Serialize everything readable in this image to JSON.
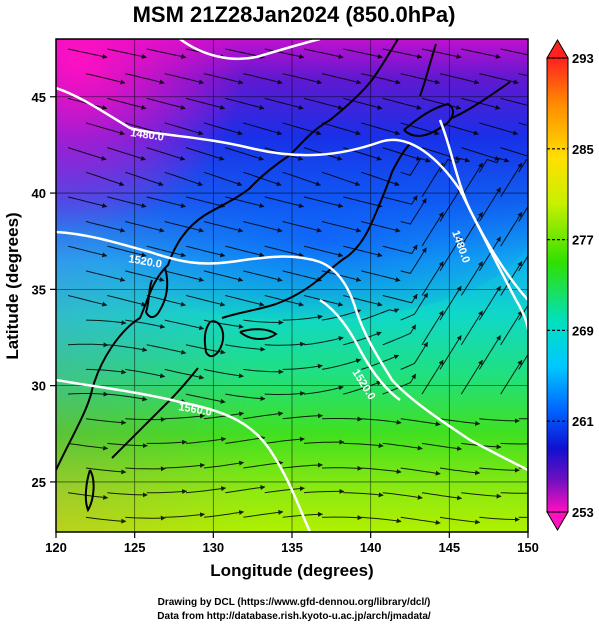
{
  "title": "MSM 21Z28Jan2024 (850.0hPa)",
  "x_axis": {
    "label": "Longitude (degrees)",
    "range": [
      120,
      150
    ],
    "ticks": [
      "120",
      "125",
      "130",
      "135",
      "140",
      "145",
      "150"
    ]
  },
  "y_axis": {
    "label": "Latitude  (degrees)",
    "range": [
      22.4,
      48
    ],
    "ticks": [
      "25",
      "30",
      "35",
      "40",
      "45"
    ]
  },
  "colorbar": {
    "min": 253,
    "max": 293,
    "ticks": [
      "293",
      "285",
      "277",
      "269",
      "261",
      "253"
    ],
    "colors": [
      "#ff2020",
      "#ff8a00",
      "#ffe000",
      "#c8f000",
      "#30e000",
      "#00e0c0",
      "#00c8ff",
      "#0060ff",
      "#1010d0",
      "#7010c0",
      "#ff10c0"
    ]
  },
  "contours": [
    {
      "label": "1480.0"
    },
    {
      "label": "1520.0"
    },
    {
      "label": "1480.0"
    },
    {
      "label": "1520.0"
    },
    {
      "label": "1560.0"
    }
  ],
  "credits": {
    "line1": "Drawing by DCL (https://www.gfd-dennou.org/library/dcl/)",
    "line2": "Data from http://database.rish.kyoto-u.ac.jp/arch/jmadata/"
  }
}
